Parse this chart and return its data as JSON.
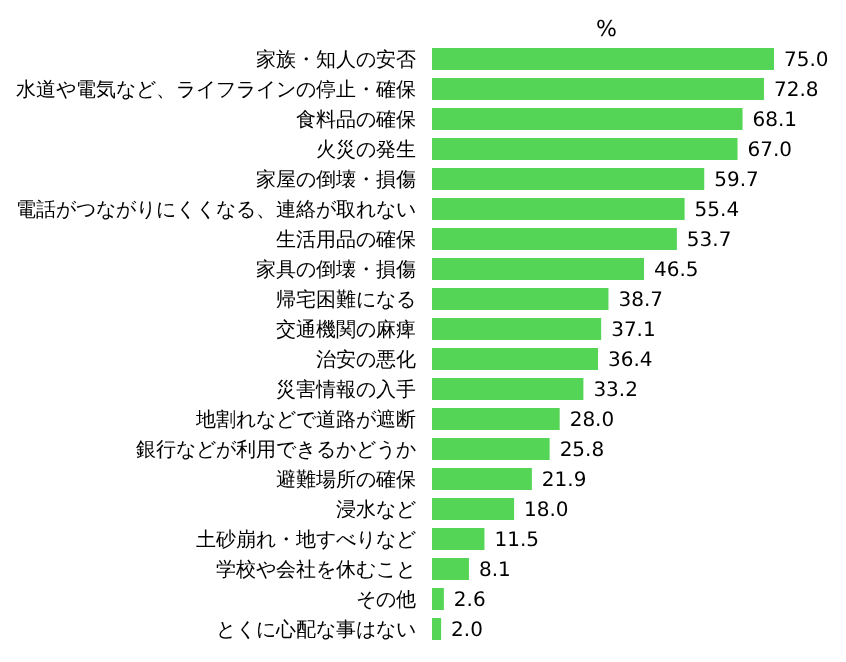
{
  "chart_data": {
    "type": "bar",
    "orientation": "horizontal",
    "title": "%",
    "categories": [
      "家族・知人の安否",
      "水道や電気など、ライフラインの停止・確保",
      "食料品の確保",
      "火災の発生",
      "家屋の倒壊・損傷",
      "電話がつながりにくくなる、連絡が取れない",
      "生活用品の確保",
      "家具の倒壊・損傷",
      "帰宅困難になる",
      "交通機関の麻痺",
      "治安の悪化",
      "災害情報の入手",
      "地割れなどで道路が遮断",
      "銀行などが利用できるかどうか",
      "避難場所の確保",
      "浸水など",
      "土砂崩れ・地すべりなど",
      "学校や会社を休むこと",
      "その他",
      "とくに心配な事はない"
    ],
    "values": [
      75.0,
      72.8,
      68.1,
      67.0,
      59.7,
      55.4,
      53.7,
      46.5,
      38.7,
      37.1,
      36.4,
      33.2,
      28.0,
      25.8,
      21.9,
      18.0,
      11.5,
      8.1,
      2.6,
      2.0
    ],
    "value_labels": [
      "75.0",
      "72.8",
      "68.1",
      "67.0",
      "59.7",
      "55.4",
      "53.7",
      "46.5",
      "38.7",
      "37.1",
      "36.4",
      "33.2",
      "28.0",
      "25.8",
      "21.9",
      "18.0",
      "11.5",
      "8.1",
      "2.6",
      "2.0"
    ],
    "color": "#55d555",
    "grid": false,
    "legend": false
  }
}
